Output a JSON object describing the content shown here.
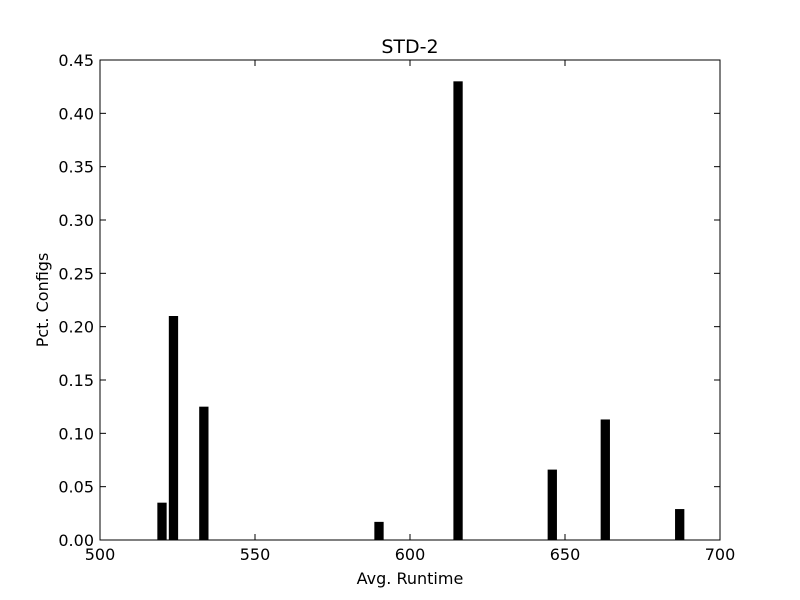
{
  "chart_data": {
    "type": "bar",
    "title": "STD-2",
    "xlabel": "Avg. Runtime",
    "ylabel": "Pct. Configs",
    "xlim": [
      500,
      700
    ],
    "ylim": [
      0,
      0.45
    ],
    "xticks": [
      "500",
      "550",
      "600",
      "650",
      "700"
    ],
    "yticks": [
      "0.00",
      "0.05",
      "0.10",
      "0.15",
      "0.20",
      "0.25",
      "0.30",
      "0.35",
      "0.40",
      "0.45"
    ],
    "grid": false,
    "bar_color": "#000000",
    "bars": [
      {
        "x": 518.5,
        "width": 3,
        "value": 0.035
      },
      {
        "x": 522.2,
        "width": 3,
        "value": 0.21
      },
      {
        "x": 532.0,
        "width": 3,
        "value": 0.125
      },
      {
        "x": 588.5,
        "width": 3,
        "value": 0.017
      },
      {
        "x": 614.0,
        "width": 3,
        "value": 0.43
      },
      {
        "x": 644.4,
        "width": 3,
        "value": 0.066
      },
      {
        "x": 661.5,
        "width": 3,
        "value": 0.113
      },
      {
        "x": 685.5,
        "width": 3,
        "value": 0.029
      }
    ]
  }
}
